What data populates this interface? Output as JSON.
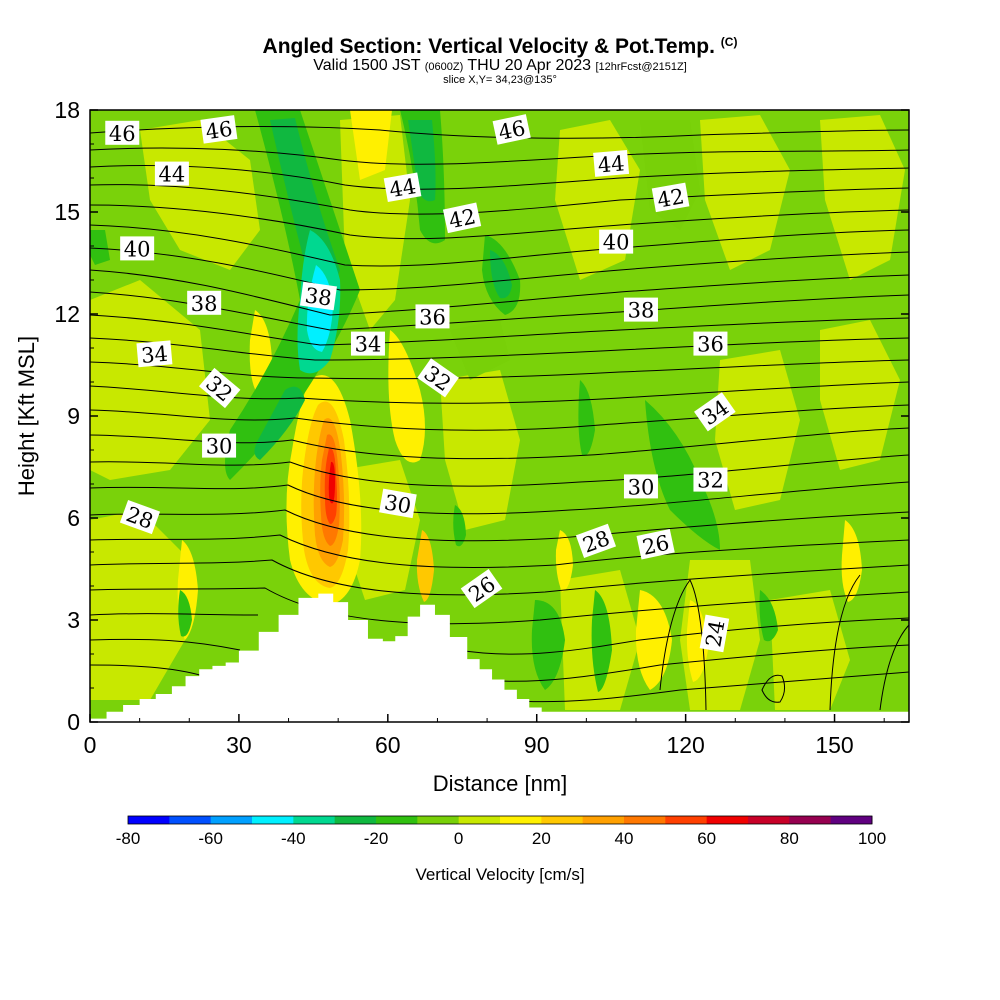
{
  "chart_data": {
    "type": "heatmap",
    "title": "Angled Section: Vertical Velocity & Pot.Temp.",
    "title_mark": "(C)",
    "subtitle_valid": "Valid 1500 JST",
    "subtitle_utc": "(0600Z)",
    "subtitle_date": "THU 20 Apr 2023",
    "subtitle_fcst": "[12hrFcst@2151Z]",
    "slice_info": "slice X,Y= 34,23@135°",
    "xlabel": "Distance [nm]",
    "ylabel": "Height [Kft MSL]",
    "xlim": [
      0,
      165
    ],
    "ylim": [
      0,
      18
    ],
    "xticks": [
      0,
      30,
      60,
      90,
      120,
      150
    ],
    "yticks": [
      0,
      3,
      6,
      9,
      12,
      15,
      18
    ],
    "colorbar": {
      "title": "Vertical Velocity [cm/s]",
      "range": [
        -80,
        100
      ],
      "tick_values": [
        -80,
        -60,
        -40,
        -20,
        0,
        20,
        40,
        60,
        80,
        100
      ],
      "colors": [
        "#0000ff",
        "#0050ff",
        "#00a0ff",
        "#00f0ff",
        "#00d890",
        "#10b840",
        "#30c010",
        "#78d008",
        "#c8e800",
        "#fff000",
        "#ffc800",
        "#ffa000",
        "#ff7800",
        "#ff4000",
        "#f00000",
        "#c80028",
        "#960050",
        "#600080"
      ]
    },
    "terrain_profile": [
      {
        "x": 0,
        "h": 0
      },
      {
        "x": 10,
        "h": 0.6
      },
      {
        "x": 16.5,
        "h": 0.9
      },
      {
        "x": 22,
        "h": 1.5
      },
      {
        "x": 30,
        "h": 1.8
      },
      {
        "x": 34,
        "h": 2.4
      },
      {
        "x": 38,
        "h": 2.9
      },
      {
        "x": 42,
        "h": 3.4
      },
      {
        "x": 46,
        "h": 3.9
      },
      {
        "x": 52,
        "h": 3.4
      },
      {
        "x": 56,
        "h": 2.6
      },
      {
        "x": 59,
        "h": 2.3
      },
      {
        "x": 64,
        "h": 2.6
      },
      {
        "x": 66.5,
        "h": 3.6
      },
      {
        "x": 72.5,
        "h": 3.0
      },
      {
        "x": 76,
        "h": 2.0
      },
      {
        "x": 81,
        "h": 1.4
      },
      {
        "x": 86,
        "h": 0.8
      },
      {
        "x": 91,
        "h": 0.3
      },
      {
        "x": 165,
        "h": 0.3
      }
    ],
    "theta_contour_labels": [
      {
        "value": "46",
        "x": 6.5,
        "y": 17.3,
        "rot": 0
      },
      {
        "value": "46",
        "x": 26,
        "y": 17.4,
        "rot": -8
      },
      {
        "value": "46",
        "x": 85,
        "y": 17.4,
        "rot": -12
      },
      {
        "value": "44",
        "x": 16.5,
        "y": 16.1,
        "rot": 0
      },
      {
        "value": "44",
        "x": 63,
        "y": 15.7,
        "rot": -10
      },
      {
        "value": "44",
        "x": 105,
        "y": 16.4,
        "rot": -5
      },
      {
        "value": "42",
        "x": 75,
        "y": 14.8,
        "rot": -12
      },
      {
        "value": "42",
        "x": 117,
        "y": 15.4,
        "rot": -10
      },
      {
        "value": "40",
        "x": 9.5,
        "y": 13.9,
        "rot": 0
      },
      {
        "value": "40",
        "x": 106,
        "y": 14.1,
        "rot": 0
      },
      {
        "value": "38",
        "x": 23,
        "y": 12.3,
        "rot": 0
      },
      {
        "value": "38",
        "x": 46,
        "y": 12.5,
        "rot": 8
      },
      {
        "value": "38",
        "x": 111,
        "y": 12.1,
        "rot": 0
      },
      {
        "value": "36",
        "x": 69,
        "y": 11.9,
        "rot": 0
      },
      {
        "value": "36",
        "x": 125,
        "y": 11.1,
        "rot": 0
      },
      {
        "value": "34",
        "x": 13,
        "y": 10.8,
        "rot": -5
      },
      {
        "value": "34",
        "x": 56,
        "y": 11.1,
        "rot": 0
      },
      {
        "value": "34",
        "x": 126,
        "y": 9.1,
        "rot": -35
      },
      {
        "value": "32",
        "x": 26,
        "y": 9.8,
        "rot": 40
      },
      {
        "value": "32",
        "x": 70,
        "y": 10.1,
        "rot": 35
      },
      {
        "value": "32",
        "x": 125,
        "y": 7.1,
        "rot": 0
      },
      {
        "value": "30",
        "x": 26,
        "y": 8.1,
        "rot": 0
      },
      {
        "value": "30",
        "x": 62,
        "y": 6.4,
        "rot": 10
      },
      {
        "value": "30",
        "x": 111,
        "y": 6.9,
        "rot": 0
      },
      {
        "value": "28",
        "x": 10,
        "y": 6.0,
        "rot": 20
      },
      {
        "value": "28",
        "x": 102,
        "y": 5.3,
        "rot": -20
      },
      {
        "value": "26",
        "x": 114,
        "y": 5.2,
        "rot": -12
      },
      {
        "value": "26",
        "x": 79,
        "y": 3.9,
        "rot": -35
      },
      {
        "value": "24",
        "x": 126,
        "y": 2.6,
        "rot": -80
      }
    ]
  }
}
